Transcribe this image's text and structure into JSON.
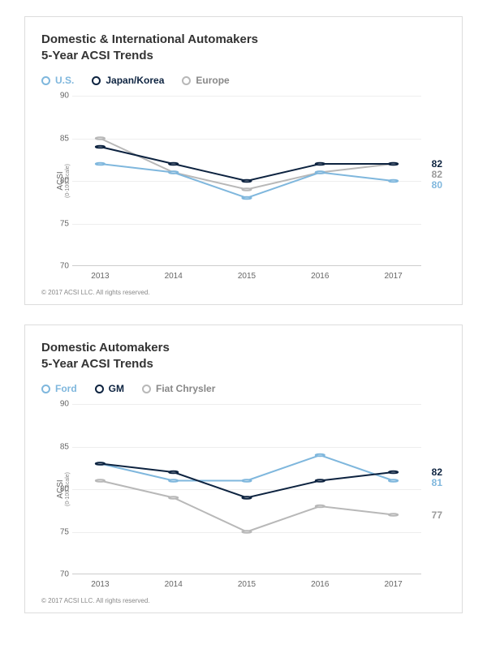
{
  "charts": [
    {
      "title_line1": "Domestic & International Automakers",
      "title_line2": "5-Year ACSI Trends",
      "ylabel": "ACSI",
      "ysublabel": "(0-100 Scale)",
      "ylim": [
        70,
        90
      ],
      "ytick_step": 5,
      "categories": [
        "2013",
        "2014",
        "2015",
        "2016",
        "2017"
      ],
      "grid_color": "#eeeeee",
      "background_color": "#ffffff",
      "title_fontsize": 15,
      "label_fontsize": 10,
      "marker_style": "circle-open",
      "line_width": 2,
      "marker_size": 6,
      "copyright": "© 2017 ACSI LLC. All rights reserved.",
      "series": [
        {
          "name": "U.S.",
          "color": "#7fb7dd",
          "values": [
            82,
            81,
            78,
            81,
            80
          ],
          "end_label": "80",
          "end_label_color": "#7fb7dd"
        },
        {
          "name": "Japan/Korea",
          "color": "#0d2340",
          "values": [
            84,
            82,
            80,
            82,
            82
          ],
          "end_label": "82",
          "end_label_color": "#0d2340"
        },
        {
          "name": "Europe",
          "color": "#b8b8b8",
          "values": [
            85,
            81,
            79,
            81,
            82
          ],
          "end_label": "82",
          "end_label_color": "#9a9a9a"
        }
      ]
    },
    {
      "title_line1": "Domestic Automakers",
      "title_line2": "5-Year ACSI Trends",
      "ylabel": "ACSI",
      "ysublabel": "(0-100 Scale)",
      "ylim": [
        70,
        90
      ],
      "ytick_step": 5,
      "categories": [
        "2013",
        "2014",
        "2015",
        "2016",
        "2017"
      ],
      "grid_color": "#eeeeee",
      "background_color": "#ffffff",
      "title_fontsize": 15,
      "label_fontsize": 10,
      "marker_style": "circle-open",
      "line_width": 2,
      "marker_size": 6,
      "copyright": "© 2017 ACSI LLC. All rights reserved.",
      "series": [
        {
          "name": "Ford",
          "color": "#7fb7dd",
          "values": [
            83,
            81,
            81,
            84,
            81
          ],
          "end_label": "81",
          "end_label_color": "#7fb7dd"
        },
        {
          "name": "GM",
          "color": "#0d2340",
          "values": [
            83,
            82,
            79,
            81,
            82
          ],
          "end_label": "82",
          "end_label_color": "#0d2340"
        },
        {
          "name": "Fiat Chrysler",
          "color": "#b8b8b8",
          "values": [
            81,
            79,
            75,
            78,
            77
          ],
          "end_label": "77",
          "end_label_color": "#9a9a9a"
        }
      ]
    }
  ]
}
